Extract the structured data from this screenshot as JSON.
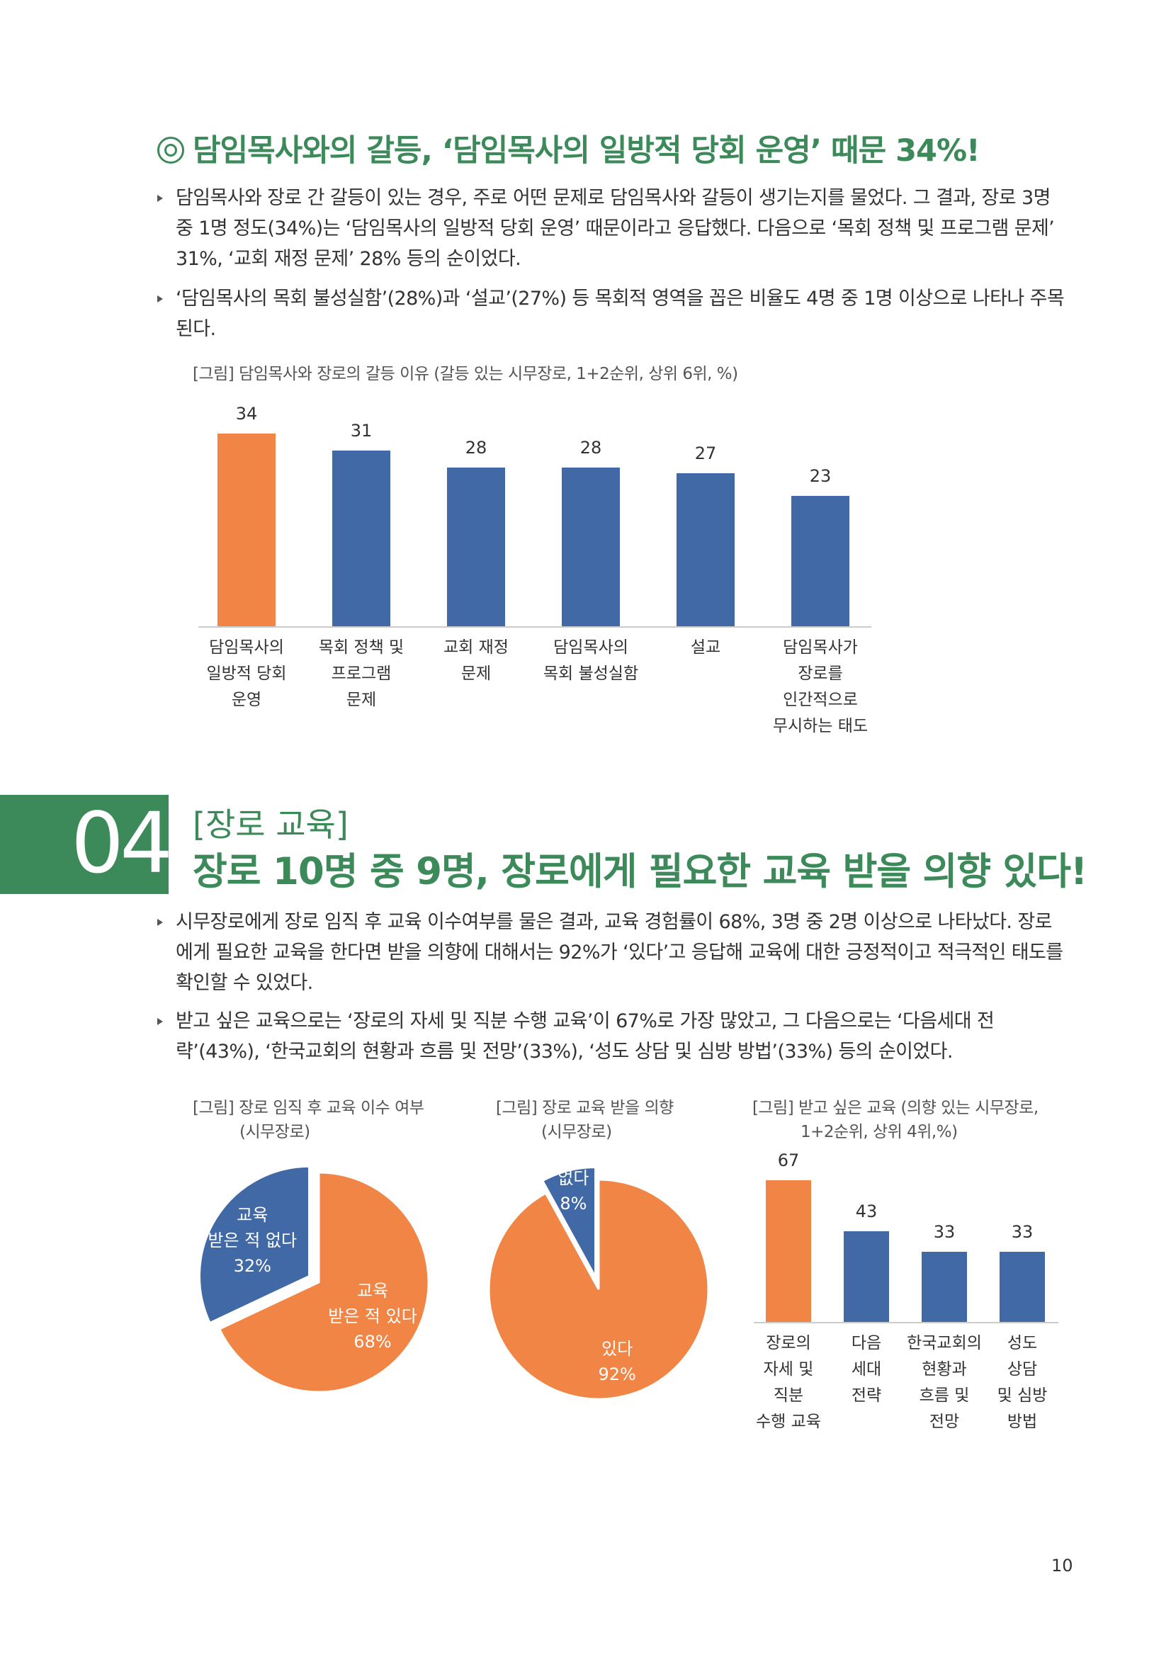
{
  "heading1": "담임목사와의 갈등, ‘담임목사의 일방적 당회 운영’ 때문 34%!",
  "para1": "담임목사와 장로 간 갈등이 있는 경우, 주로 어떤 문제로 담임목사와 갈등이 생기는지를 물었다. 그 결과, 장로 3명 중 1명 정도(34%)는 ‘담임목사의 일방적 당회 운영’ 때문이라고 응답했다. 다음으로 ‘목회 정책 및 프로그램 문제’ 31%, ‘교회 재정 문제’ 28% 등의 순이었다.",
  "para2": "‘담임목사의 목회 불성실함’(28%)과 ‘설교’(27%) 등 목회적 영역을 꼽은 비율도 4명 중 1명 이상으로 나타나 주목된다.",
  "chart1_caption": "[그림] 담임목사와 장로의 갈등 이유 (갈등 있는 시무장로, 1+2순위, 상위 6위, %)",
  "section": {
    "number": "04",
    "tag": "[장로 교육]",
    "title": "장로 10명 중 9명, 장로에게 필요한 교육 받을 의향 있다!"
  },
  "para3": "시무장로에게 장로 임직 후 교육 이수여부를 물은 결과, 교육 경험률이 68%, 3명 중 2명 이상으로 나타났다. 장로에게 필요한 교육을 한다면 받을 의향에 대해서는 92%가 ‘있다’고 응답해 교육에 대한 긍정적이고 적극적인 태도를 확인할 수 있었다.",
  "para4": "받고 싶은 교육으로는 ‘장로의 자세 및 직분 수행 교육’이 67%로 가장 많았고, 그 다음으로는 ‘다음세대 전략’(43%), ‘한국교회의 현황과 흐름 및 전망’(33%), ‘성도 상담 및 심방 방법’(33%) 등의 순이었다.",
  "pie1_caption": [
    "[그림] 장로 임직 후 교육 이수 여부",
    "(시무장로)"
  ],
  "pie2_caption": [
    "[그림] 장로 교육 받을 의향",
    "(시무장로)"
  ],
  "chart2_caption": [
    "[그림] 받고 싶은 교육 (의향 있는 시무장로,",
    "1+2순위, 상위 4위,%)"
  ],
  "page_number": "10",
  "colors": {
    "accent": "#3c8a5a",
    "orange": "#f08545",
    "blue": "#4169a6"
  },
  "chart_data": [
    {
      "type": "bar",
      "title": "[그림] 담임목사와 장로의 갈등 이유 (갈등 있는 시무장로, 1+2순위, 상위 6위, %)",
      "categories": [
        [
          "담임목사의",
          "일방적 당회",
          "운영"
        ],
        [
          "목회 정책 및",
          "프로그램",
          "문제"
        ],
        [
          "교회 재정",
          "문제"
        ],
        [
          "담임목사의",
          "목회 불성실함"
        ],
        [
          "설교"
        ],
        [
          "담임목사가",
          "장로를",
          "인간적으로",
          "무시하는 태도"
        ]
      ],
      "values": [
        34,
        31,
        28,
        28,
        27,
        23
      ],
      "highlight_index": 0,
      "ylim": [
        0,
        34
      ]
    },
    {
      "type": "pie",
      "title": "[그림] 장로 임직 후 교육 이수 여부 (시무장로)",
      "slices": [
        {
          "label": [
            "교육",
            "받은 적 있다",
            "68%"
          ],
          "value": 68,
          "color": "#f08545"
        },
        {
          "label": [
            "교육",
            "받은 적 없다",
            "32%"
          ],
          "value": 32,
          "color": "#4169a6",
          "exploded": true
        }
      ]
    },
    {
      "type": "pie",
      "title": "[그림] 장로 교육 받을 의향 (시무장로)",
      "slices": [
        {
          "label": [
            "있다",
            "92%"
          ],
          "value": 92,
          "color": "#f08545"
        },
        {
          "label": [
            "없다",
            "8%"
          ],
          "value": 8,
          "color": "#4169a6",
          "exploded": true
        }
      ]
    },
    {
      "type": "bar",
      "title": "[그림] 받고 싶은 교육 (의향 있는 시무장로, 1+2순위, 상위 4위,%)",
      "categories": [
        [
          "장로의",
          "자세 및",
          "직분",
          "수행 교육"
        ],
        [
          "다음",
          "세대",
          "전략"
        ],
        [
          "한국교회의",
          "현황과",
          "흐름 및",
          "전망"
        ],
        [
          "성도",
          "상담",
          "및 심방",
          "방법"
        ]
      ],
      "values": [
        67,
        43,
        33,
        33
      ],
      "highlight_index": 0,
      "ylim": [
        0,
        67
      ]
    }
  ]
}
